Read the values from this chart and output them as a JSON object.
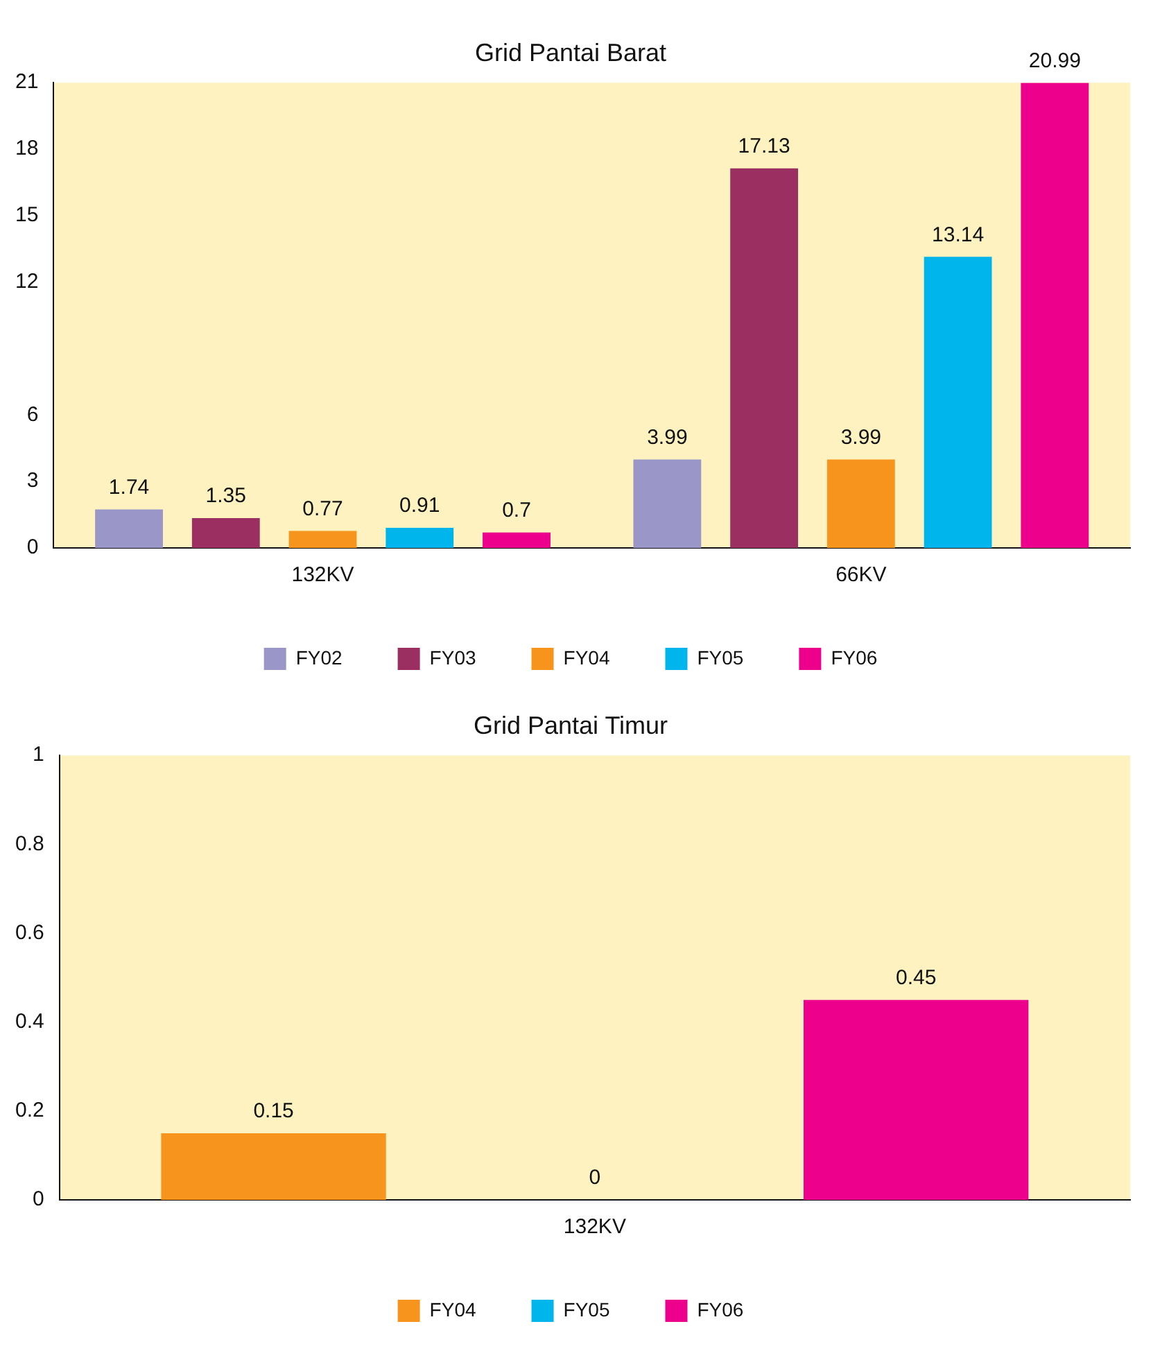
{
  "chart_data": [
    {
      "type": "bar",
      "title": "Grid Pantai Barat",
      "categories": [
        "132KV",
        "66KV"
      ],
      "series": [
        {
          "name": "FY02",
          "color": "#9b96c8",
          "values": [
            1.74,
            3.99
          ]
        },
        {
          "name": "FY03",
          "color": "#9b2f62",
          "values": [
            1.35,
            17.13
          ]
        },
        {
          "name": "FY04",
          "color": "#f7941d",
          "values": [
            0.77,
            3.99
          ]
        },
        {
          "name": "FY05",
          "color": "#00b5ec",
          "values": [
            0.91,
            13.14
          ]
        },
        {
          "name": "FY06",
          "color": "#ec008c",
          "values": [
            0.7,
            20.99
          ]
        }
      ],
      "ylim": [
        0,
        21
      ],
      "yticks": [
        0,
        3,
        6,
        12,
        15,
        18,
        21
      ],
      "legend": "bottom",
      "data_labels": true
    },
    {
      "type": "bar",
      "title": "Grid Pantai Timur",
      "categories": [
        "132KV"
      ],
      "series": [
        {
          "name": "FY04",
          "color": "#f7941d",
          "values": [
            0.15
          ]
        },
        {
          "name": "FY05",
          "color": "#00b5ec",
          "values": [
            0
          ]
        },
        {
          "name": "FY06",
          "color": "#ec008c",
          "values": [
            0.45
          ]
        }
      ],
      "ylim": [
        0,
        1
      ],
      "yticks": [
        0,
        0.2,
        0.4,
        0.6,
        0.8,
        1
      ],
      "legend": "bottom",
      "data_labels": true
    }
  ]
}
